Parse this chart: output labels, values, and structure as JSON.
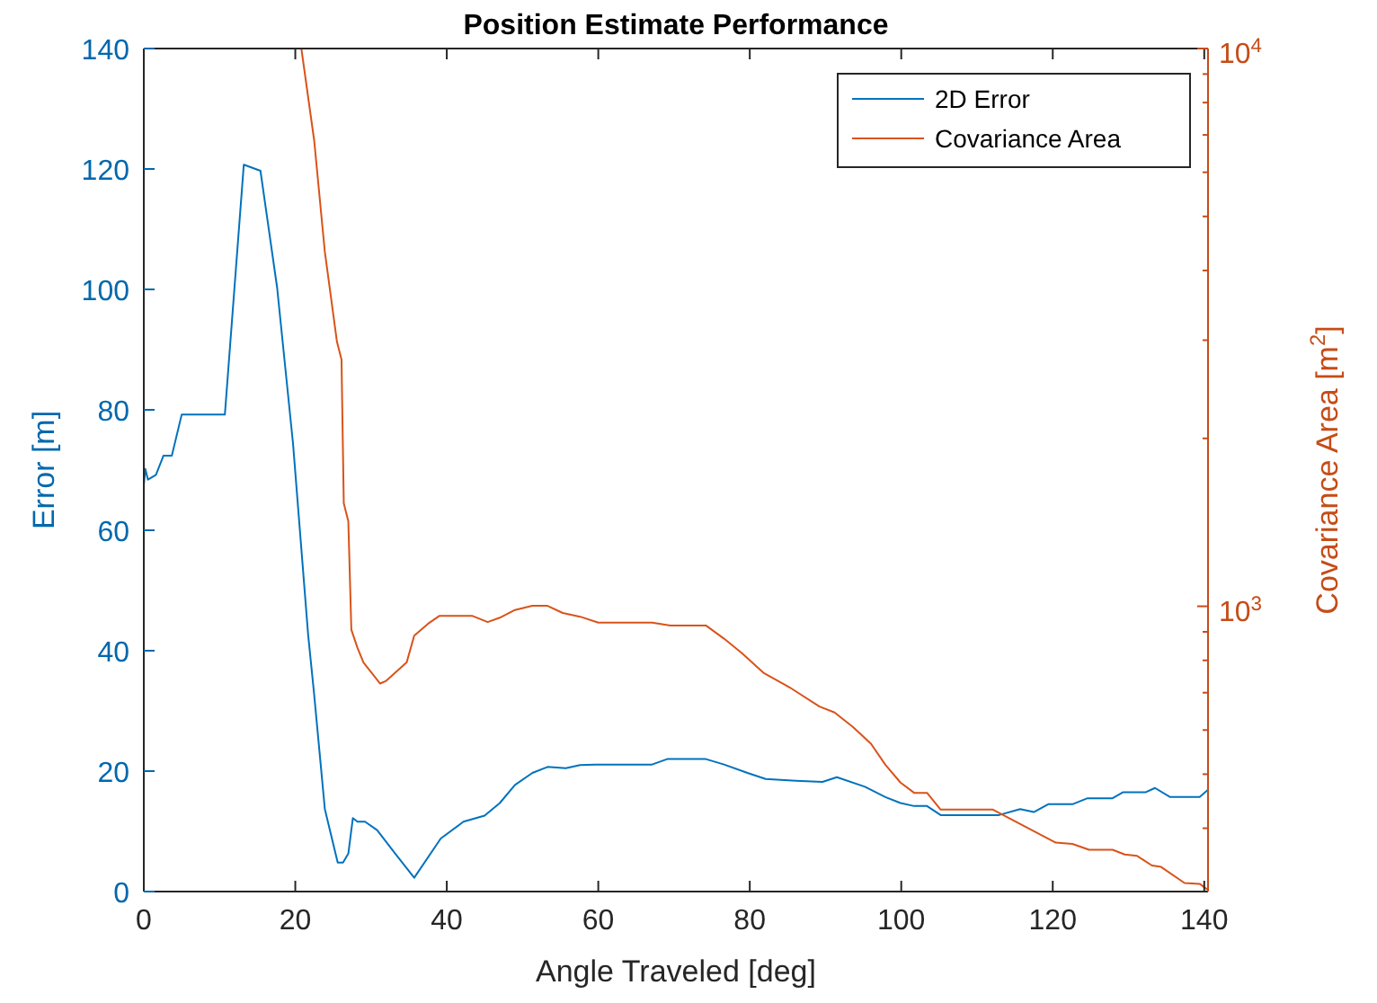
{
  "chart_data": {
    "type": "line",
    "title": "Position Estimate Performance",
    "xlabel": "Angle Traveled [deg]",
    "ylabel": "Error [m]",
    "y2label": "Covariance Area [m$^{2}$]",
    "xlim": [
      0,
      140.5
    ],
    "xticks": [
      0,
      20,
      40,
      60,
      80,
      100,
      120,
      140
    ],
    "ylim": [
      0,
      140
    ],
    "yticks": [
      0,
      20,
      40,
      60,
      80,
      100,
      120,
      140
    ],
    "y2lim": [
      308,
      10000
    ],
    "y2ticks": [
      {
        "value": 400,
        "label": null
      },
      {
        "value": 500,
        "label": null
      },
      {
        "value": 600,
        "label": null
      },
      {
        "value": 700,
        "label": null
      },
      {
        "value": 800,
        "label": null
      },
      {
        "value": 900,
        "label": null
      },
      {
        "value": 1000,
        "label": "10$^{3}$"
      },
      {
        "value": 2000,
        "label": null
      },
      {
        "value": 3000,
        "label": null
      },
      {
        "value": 4000,
        "label": null
      },
      {
        "value": 5000,
        "label": null
      },
      {
        "value": 6000,
        "label": null
      },
      {
        "value": 7000,
        "label": null
      },
      {
        "value": 8000,
        "label": null
      },
      {
        "value": 9000,
        "label": null
      },
      {
        "value": 10000,
        "label": "10$^{4}$"
      }
    ],
    "log": "y2",
    "grid": false,
    "legend": "top right",
    "line_style": "solid",
    "marker": "none",
    "series": [
      {
        "name": "2D Error",
        "color": "#0072bd",
        "x": [
          0,
          0.2,
          0.55,
          1.6,
          2.6,
          3.7,
          5.0,
          10.7,
          13.2,
          15.4,
          17.6,
          19.7,
          21.7,
          22.5,
          23.9,
          25.6,
          26.3,
          27.0,
          27.6,
          28.2,
          29.2,
          30.8,
          33.2,
          35.7,
          39.2,
          42.2,
          45.0,
          47.0,
          49.0,
          51.3,
          53.3,
          55.7,
          57.6,
          59.6,
          67.1,
          69.1,
          74.2,
          76.6,
          79.7,
          82.1,
          86.1,
          89.6,
          91.5,
          95.2,
          97.9,
          99.9,
          101.7,
          103.4,
          105.2,
          112.9,
          115.7,
          117.5,
          119.4,
          122.6,
          124.6,
          127.9,
          129.3,
          132.3,
          133.5,
          135.5,
          139.4,
          140.5
        ],
        "values": [
          67.5,
          70.2,
          68.4,
          69.2,
          72.4,
          72.4,
          79.2,
          79.2,
          120.7,
          119.7,
          100.3,
          74.4,
          42.6,
          32.6,
          13.7,
          4.8,
          4.8,
          6.3,
          12.2,
          11.6,
          11.6,
          10.2,
          6.3,
          2.3,
          8.8,
          11.6,
          12.6,
          14.7,
          17.7,
          19.7,
          20.7,
          20.5,
          21.0,
          21.1,
          21.1,
          22.0,
          22.0,
          21.1,
          19.7,
          18.7,
          18.4,
          18.2,
          19.0,
          17.4,
          15.7,
          14.7,
          14.2,
          14.2,
          12.7,
          12.7,
          13.7,
          13.2,
          14.5,
          14.5,
          15.5,
          15.5,
          16.5,
          16.5,
          17.2,
          15.7,
          15.7,
          16.9
        ]
      },
      {
        "name": "Covariance Area",
        "color": "#d95319",
        "axis": "y2",
        "x": [
          20.8,
          22.5,
          23.9,
          25.5,
          26.1,
          26.4,
          27.0,
          27.4,
          28.2,
          29.0,
          31.2,
          32.0,
          34.7,
          35.7,
          37.5,
          39.0,
          43.4,
          45.4,
          47.0,
          49.0,
          51.3,
          53.3,
          55.3,
          57.6,
          60.0,
          67.1,
          69.5,
          74.2,
          76.6,
          79.0,
          81.8,
          85.3,
          89.2,
          91.2,
          93.6,
          96.0,
          97.9,
          99.9,
          101.7,
          103.4,
          105.2,
          112.1,
          120.4,
          122.6,
          124.8,
          127.9,
          129.5,
          131.1,
          133.1,
          134.3,
          137.4,
          139.4,
          140.5
        ],
        "values": [
          10000,
          6830,
          4320,
          2980,
          2770,
          1530,
          1420,
          908,
          843,
          793,
          727,
          735,
          793,
          886,
          930,
          961,
          961,
          937,
          954,
          985,
          1002,
          1002,
          973,
          958,
          935,
          935,
          924,
          924,
          875,
          823,
          760,
          715,
          661,
          645,
          608,
          567,
          520,
          483,
          463,
          463,
          432,
          432,
          377,
          375,
          366,
          366,
          359,
          357,
          343,
          341,
          319,
          318,
          310
        ]
      }
    ]
  }
}
